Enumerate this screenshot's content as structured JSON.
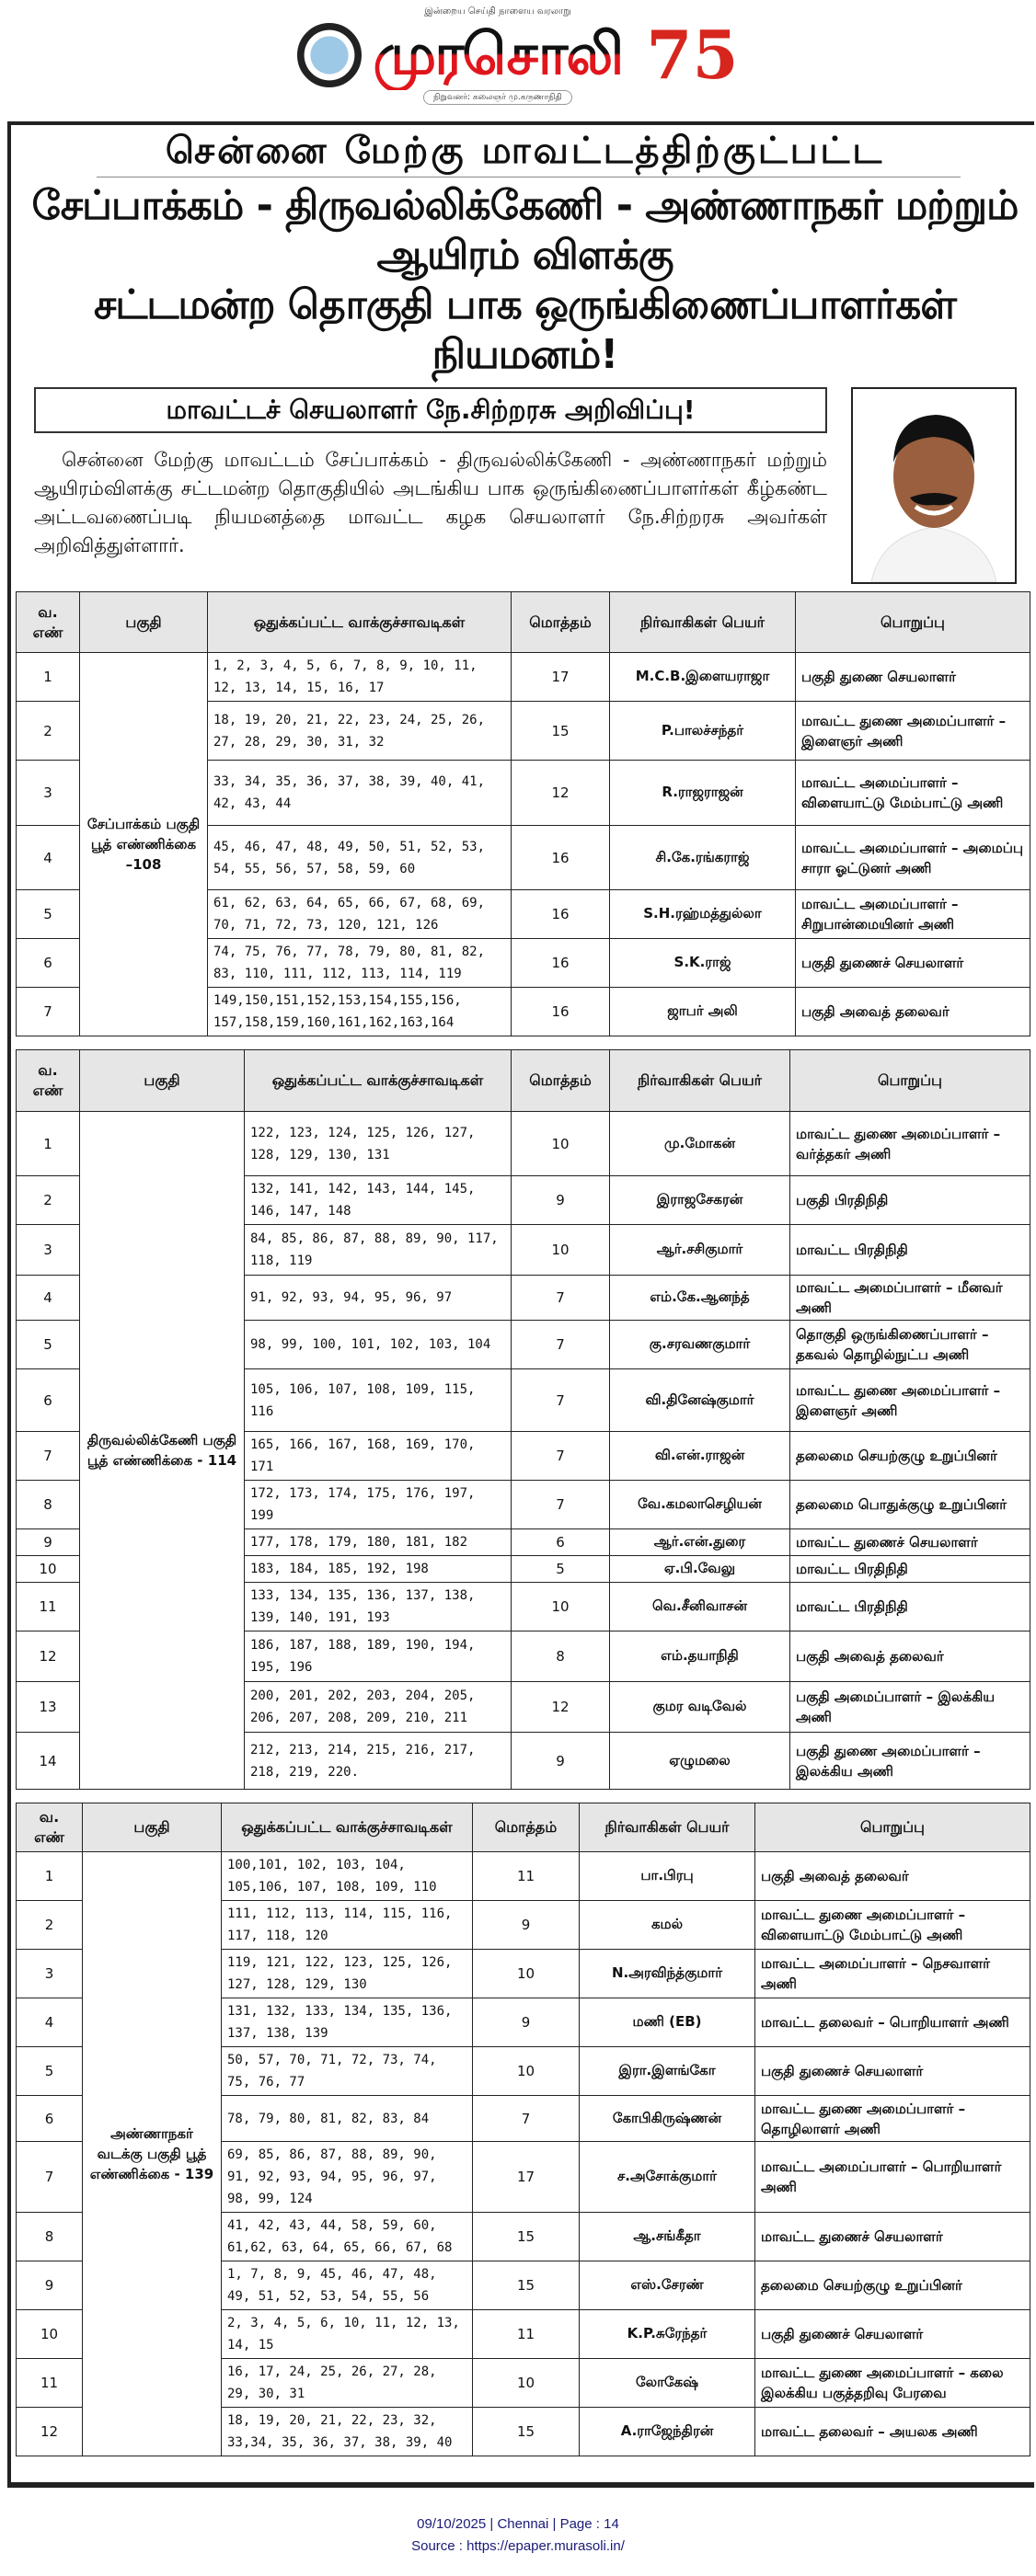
{
  "masthead": {
    "tagline": "இன்றைய செய்தி நாளைய வரலாறு",
    "name": "முரசொலி",
    "founder_line": "நிறுவனர்: கலைஞர் மு.கருணாநிதி",
    "anniversary": "75"
  },
  "article": {
    "title_line1": "சென்னை மேற்கு மாவட்டத்திற்குட்பட்ட",
    "title_line2": "சேப்பாக்கம் - திருவல்லிக்கேணி - அண்ணாநகர் மற்றும் ஆயிரம் விளக்கு",
    "title_line3": "சட்டமன்ற தொகுதி  பாக ஒருங்கிணைப்பாளர்கள் நியமனம்!",
    "subtitle": "மாவட்டச் செயலாளர் நே.சிற்றரசு அறிவிப்பு!",
    "body": "சென்னை மேற்கு மாவட்டம் சேப்பாக்கம் - திருவல்லிக்கேணி - அண்ணாநகர் மற்றும் ஆயிரம்விளக்கு சட்டமன்ற தொகுதியில் அடங்கிய பாக ஒருங்கிணைப்பாளர்கள் கீழ்கண்ட அட்டவணைப்படி நியமனத்தை மாவட்ட கழக செயலாளர் நே.சிற்றரசு அவர்கள் அறிவித்துள்ளார்."
  },
  "headers": [
    "வ. எண்",
    "பகுதி",
    "ஒதுக்கப்பட்ட வாக்குச்சாவடிகள்",
    "மொத்தம்",
    "நிர்வாகிகள் பெயர்",
    "பொறுப்பு"
  ],
  "tables": [
    {
      "region": "சேப்பாக்கம் பகுதி பூத் எண்ணிக்கை –108",
      "rows": [
        [
          "1",
          "1, 2, 3, 4, 5, 6, 7, 8, 9, 10, 11, 12, 13, 14, 15, 16, 17",
          "17",
          "M.C.B.இளையராஜா",
          "பகுதி துணை செயலாளர்"
        ],
        [
          "2",
          "18, 19, 20, 21, 22, 23, 24, 25, 26, 27, 28, 29, 30, 31, 32",
          "15",
          "P.பாலச்சந்தர்",
          "மாவட்ட துணை அமைப்பாளர் – இளைஞர் அணி"
        ],
        [
          "3",
          "33, 34, 35, 36, 37, 38, 39, 40, 41, 42, 43, 44",
          "12",
          "R.ராஜராஜன்",
          "மாவட்ட அமைப்பாளர் – விளையாட்டு மேம்பாட்டு அணி"
        ],
        [
          "4",
          "45, 46, 47, 48, 49, 50, 51, 52, 53, 54, 55, 56, 57, 58, 59, 60",
          "16",
          "சி.கே.ரங்கராஜ்",
          "மாவட்ட அமைப்பாளர் – அமைப்பு சாரா ஓட்டுனர் அணி"
        ],
        [
          "5",
          "61, 62, 63, 64, 65, 66, 67, 68, 69, 70, 71, 72, 73, 120, 121, 126",
          "16",
          "S.H.ரஹ்மத்துல்லா",
          "மாவட்ட அமைப்பாளர் – சிறுபான்மையினர் அணி"
        ],
        [
          "6",
          "74, 75, 76, 77, 78, 79, 80, 81, 82, 83, 110, 111, 112, 113, 114, 119",
          "16",
          "S.K.ராஜ்",
          "பகுதி துணைச் செயலாளர்"
        ],
        [
          "7",
          "149,150,151,152,153,154,155,156, 157,158,159,160,161,162,163,164",
          "16",
          "ஜாபர் அலி",
          "பகுதி அவைத் தலைவர்"
        ]
      ]
    },
    {
      "region": "திருவல்லிக்கேணி பகுதி பூத் எண்ணிக்கை - 114",
      "rows": [
        [
          "1",
          "122, 123, 124, 125, 126, 127, 128, 129, 130, 131",
          "10",
          "மு.மோகன்",
          "மாவட்ட துணை அமைப்பாளர் – வர்த்தகர் அணி"
        ],
        [
          "2",
          "132, 141, 142, 143, 144, 145, 146, 147, 148",
          "9",
          "இராஜசேகரன்",
          "பகுதி பிரதிநிதி"
        ],
        [
          "3",
          "84, 85, 86, 87, 88, 89, 90, 117, 118, 119",
          "10",
          "ஆர்.சசிகுமார்",
          "மாவட்ட பிரதிநிதி"
        ],
        [
          "4",
          "91, 92, 93, 94, 95, 96, 97",
          "7",
          "எம்.கே.ஆனந்த்",
          "மாவட்ட அமைப்பாளர் – மீனவர் அணி"
        ],
        [
          "5",
          "98, 99, 100, 101, 102, 103, 104",
          "7",
          "கு.சரவணகுமார்",
          "தொகுதி ஒருங்கிணைப்பாளர் – தகவல் தொழில்நுட்ப அணி"
        ],
        [
          "6",
          "105, 106, 107, 108, 109, 115, 116",
          "7",
          "வி.தினேஷ்குமார்",
          "மாவட்ட துணை அமைப்பாளர் – இளைஞர் அணி"
        ],
        [
          "7",
          "165, 166, 167, 168, 169, 170, 171",
          "7",
          "வி.என்.ராஜன்",
          "தலைமை செயற்குழு உறுப்பினர்"
        ],
        [
          "8",
          "172, 173, 174, 175, 176, 197, 199",
          "7",
          "வே.கமலாசெழியன்",
          "தலைமை பொதுக்குழு உறுப்பினர்"
        ],
        [
          "9",
          "177, 178, 179, 180, 181, 182",
          "6",
          "ஆர்.என்.துரை",
          "மாவட்ட துணைச் செயலாளர்"
        ],
        [
          "10",
          "183, 184, 185, 192, 198",
          "5",
          "ஏ.பி.வேலு",
          "மாவட்ட பிரதிநிதி"
        ],
        [
          "11",
          "133, 134, 135, 136, 137, 138, 139, 140, 191, 193",
          "10",
          "வெ.சீனிவாசன்",
          "மாவட்ட பிரதிநிதி"
        ],
        [
          "12",
          "186, 187, 188, 189, 190, 194, 195, 196",
          "8",
          "எம்.தயாநிதி",
          "பகுதி அவைத் தலைவர்"
        ],
        [
          "13",
          "200, 201, 202, 203, 204, 205, 206, 207, 208, 209, 210, 211",
          "12",
          "குமர வடிவேல்",
          "பகுதி அமைப்பாளர் – இலக்கிய அணி"
        ],
        [
          "14",
          "212, 213, 214, 215, 216, 217, 218, 219, 220.",
          "9",
          "ஏழுமலை",
          "பகுதி துணை அமைப்பாளர் – இலக்கிய அணி"
        ]
      ]
    },
    {
      "region": "அண்ணாநகர் வடக்கு பகுதி பூத் எண்ணிக்கை - 139",
      "rows": [
        [
          "1",
          "100,101, 102, 103, 104, 105,106, 107, 108, 109, 110",
          "11",
          "பா.பிரபு",
          "பகுதி அவைத் தலைவர்"
        ],
        [
          "2",
          "111, 112, 113, 114, 115, 116, 117, 118, 120",
          "9",
          "கமல்",
          "மாவட்ட துணை அமைப்பாளர் – விளையாட்டு மேம்பாட்டு அணி"
        ],
        [
          "3",
          "119, 121, 122, 123, 125, 126, 127, 128, 129, 130",
          "10",
          "N.அரவிந்த்குமார்",
          "மாவட்ட அமைப்பாளர் – நெசவாளர் அணி"
        ],
        [
          "4",
          "131, 132, 133, 134, 135, 136, 137, 138, 139",
          "9",
          "மணி (EB)",
          "மாவட்ட தலைவர் – பொறியாளர் அணி"
        ],
        [
          "5",
          "50, 57, 70, 71, 72, 73, 74, 75, 76, 77",
          "10",
          "இரா.இளங்கோ",
          "பகுதி துணைச் செயலாளர்"
        ],
        [
          "6",
          "78, 79, 80, 81, 82, 83, 84",
          "7",
          "கோபிகிருஷ்ணன்",
          "மாவட்ட துணை அமைப்பாளர் – தொழிலாளர் அணி"
        ],
        [
          "7",
          "69, 85, 86, 87, 88, 89, 90, 91, 92, 93, 94, 95, 96, 97, 98, 99, 124",
          "17",
          "ச.அசோக்குமார்",
          "மாவட்ட அமைப்பாளர் – பொறியாளர் அணி"
        ],
        [
          "8",
          "41, 42, 43, 44, 58, 59, 60, 61,62, 63, 64, 65, 66, 67, 68",
          "15",
          "ஆ.சங்கீதா",
          "மாவட்ட துணைச் செயலாளர்"
        ],
        [
          "9",
          "1, 7, 8, 9, 45, 46, 47, 48, 49, 51, 52, 53, 54, 55, 56",
          "15",
          "எஸ்.சேரண்",
          "தலைமை செயற்குழு உறுப்பினர்"
        ],
        [
          "10",
          "2, 3, 4, 5, 6, 10, 11, 12, 13, 14, 15",
          "11",
          "K.P.சுரேந்தர்",
          "பகுதி துணைச் செயலாளர்"
        ],
        [
          "11",
          "16, 17, 24, 25, 26, 27, 28, 29, 30, 31",
          "10",
          "லோகேஷ்",
          "மாவட்ட துணை அமைப்பாளர் – கலை இலக்கிய பகுத்தறிவு பேரவை"
        ],
        [
          "12",
          "18, 19, 20, 21, 22, 23, 32, 33,34, 35, 36, 37, 38, 39, 40",
          "15",
          "A.ராஜேந்திரன்",
          "மாவட்ட தலைவர் – அயலக அணி"
        ]
      ]
    }
  ],
  "footer": {
    "line1": "09/10/2025 | Chennai | Page : 14",
    "line2": "Source : https://epaper.murasoli.in/"
  },
  "colors": {
    "masthead_red": "#e0161c",
    "header_gray": "#e6e6e6",
    "footer_blue": "#1a1a7a"
  }
}
